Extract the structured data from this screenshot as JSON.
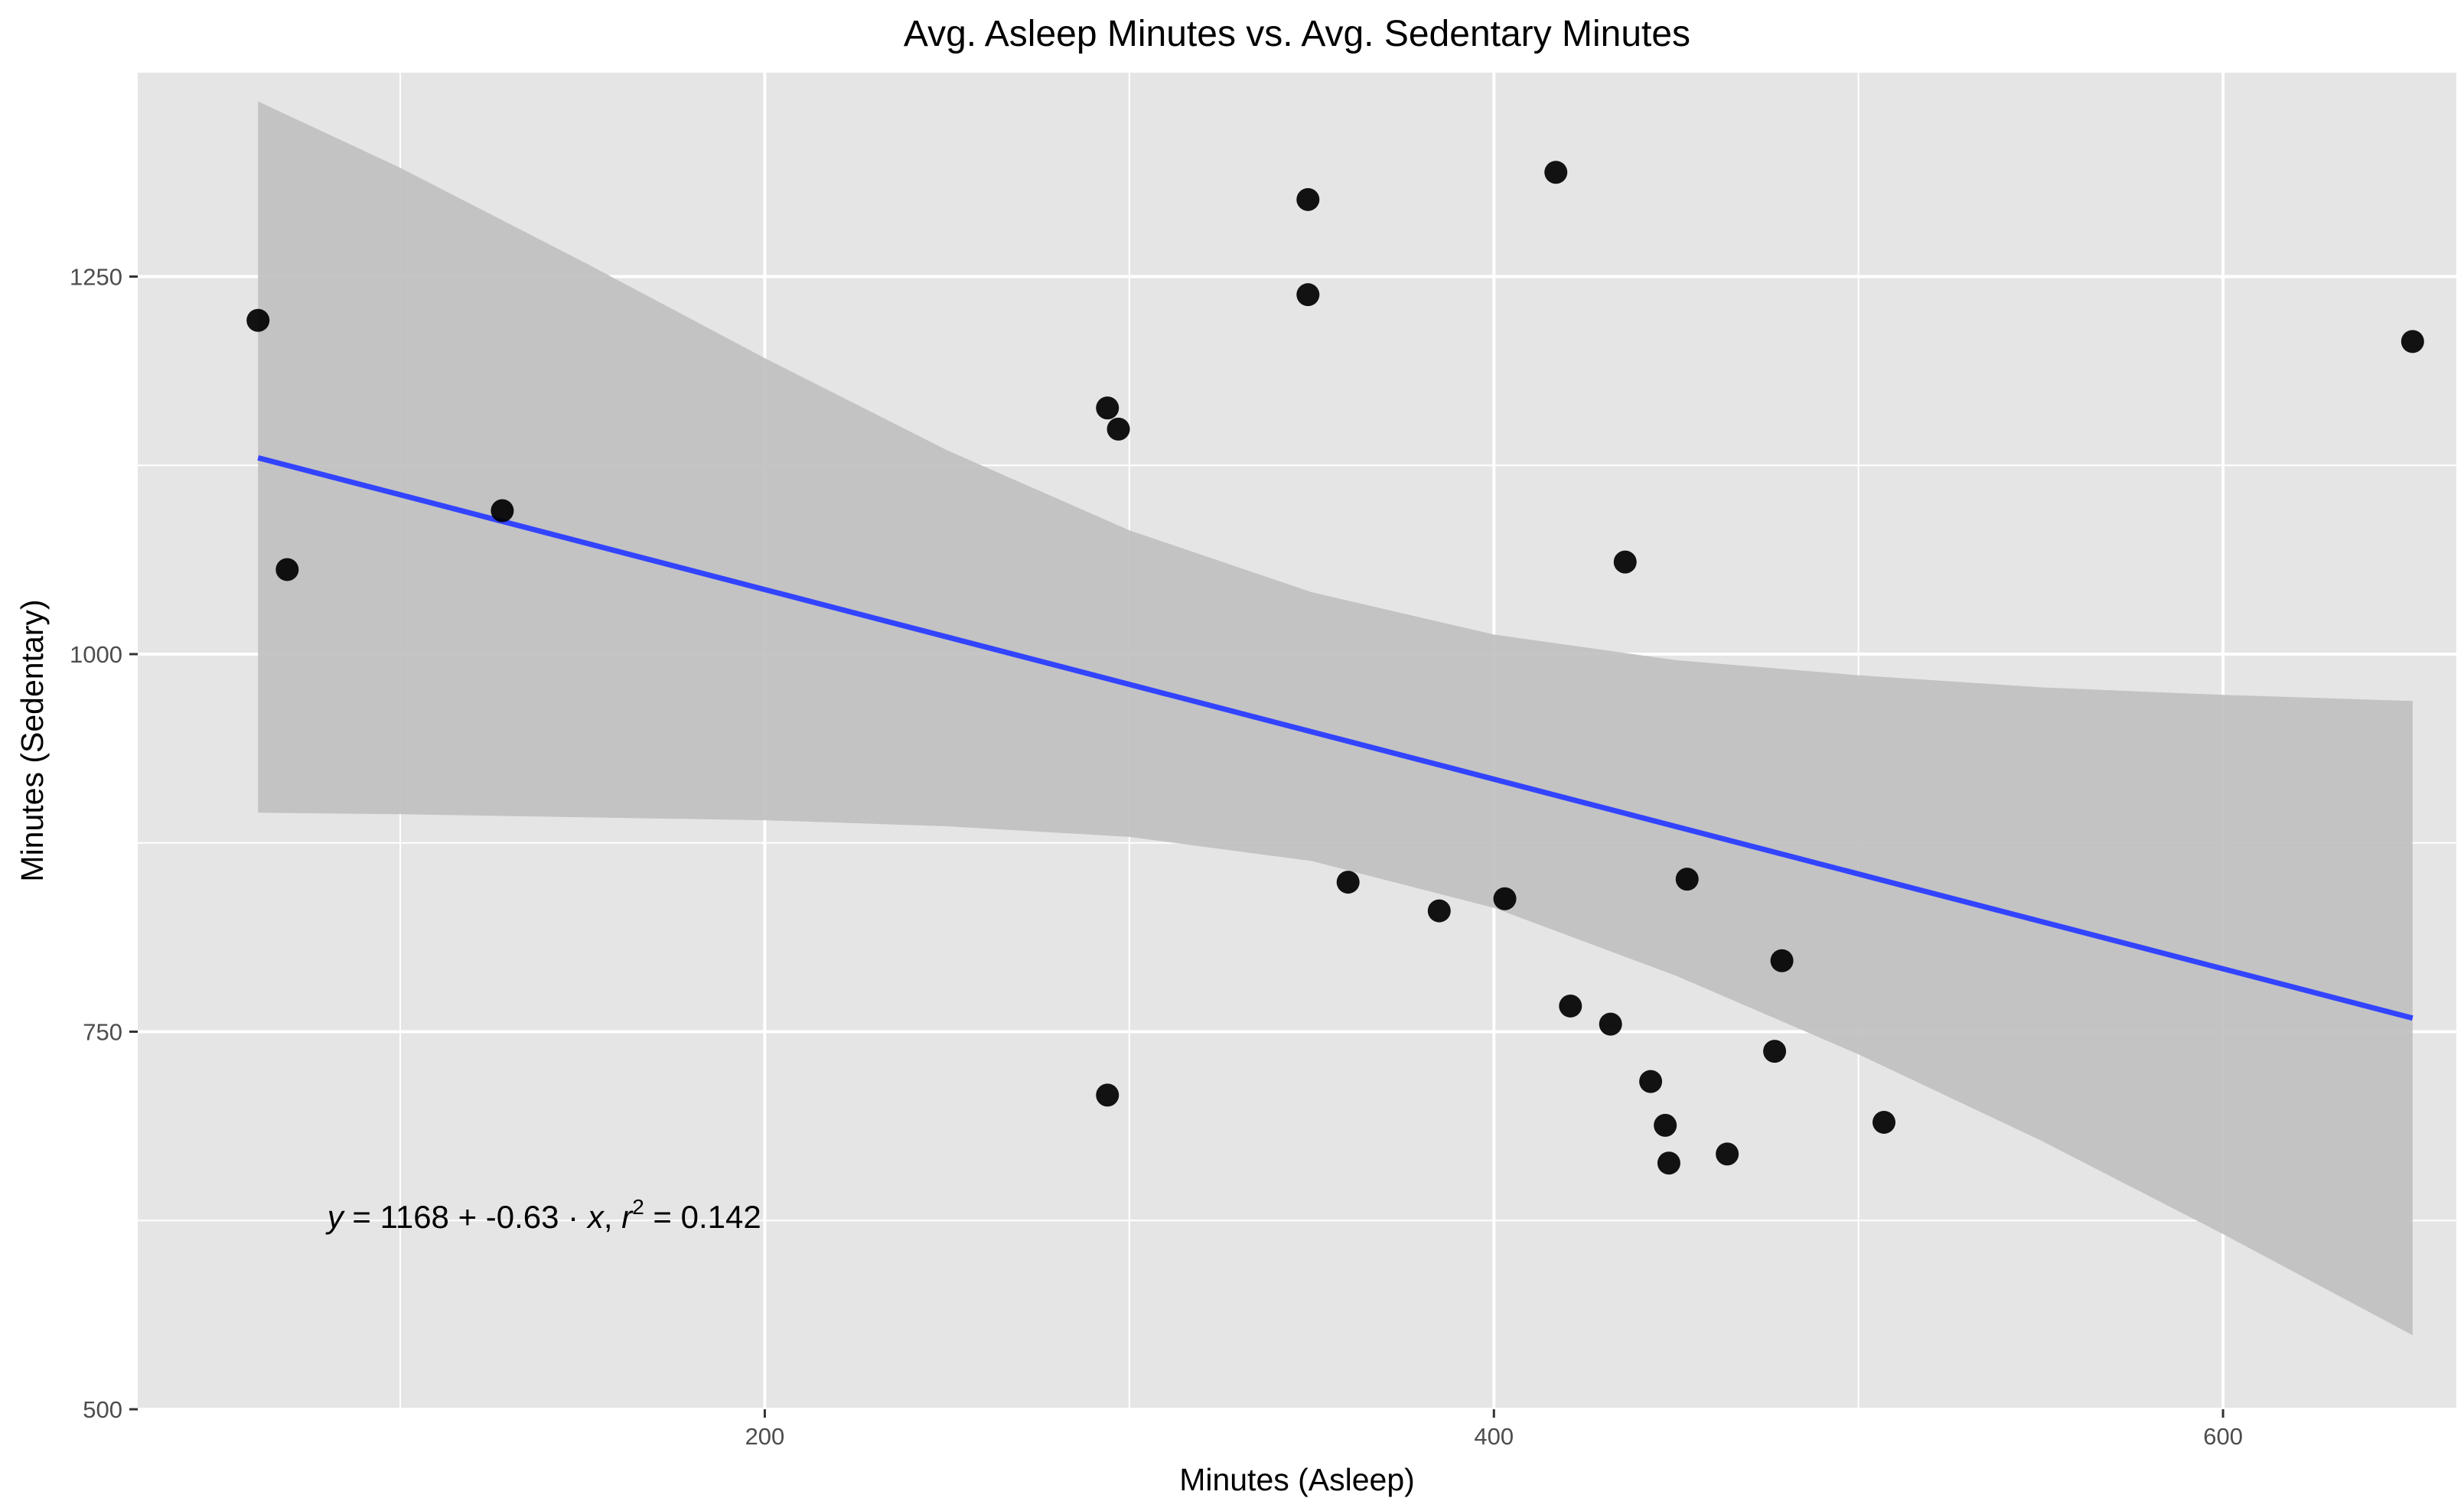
{
  "chart_data": {
    "type": "scatter",
    "title": "Avg. Asleep Minutes vs. Avg. Sedentary Minutes",
    "xlabel": "Minutes (Asleep)",
    "ylabel": "Minutes (Sedentary)",
    "xlim": [
      28,
      664
    ],
    "ylim": [
      500,
      1385
    ],
    "x_ticks": [
      200,
      400,
      600
    ],
    "y_ticks": [
      500,
      750,
      1000,
      1250
    ],
    "x_minor": [
      100,
      300,
      500
    ],
    "y_minor": [
      625,
      875,
      1125
    ],
    "grid": true,
    "legend": "none",
    "colors": {
      "panel": "#e5e5e5",
      "grid": "#ffffff",
      "points": "#000000",
      "fit_line": "#3344ff",
      "confidence_band": "#bfbfbf"
    },
    "points": [
      {
        "x": 61,
        "y": 1221
      },
      {
        "x": 69,
        "y": 1056
      },
      {
        "x": 128,
        "y": 1095
      },
      {
        "x": 294,
        "y": 1163
      },
      {
        "x": 297,
        "y": 1149
      },
      {
        "x": 294,
        "y": 708
      },
      {
        "x": 349,
        "y": 1301
      },
      {
        "x": 349,
        "y": 1238
      },
      {
        "x": 360,
        "y": 849
      },
      {
        "x": 385,
        "y": 830
      },
      {
        "x": 403,
        "y": 838
      },
      {
        "x": 417,
        "y": 1319
      },
      {
        "x": 421,
        "y": 767
      },
      {
        "x": 432,
        "y": 755
      },
      {
        "x": 436,
        "y": 1061
      },
      {
        "x": 443,
        "y": 717
      },
      {
        "x": 447,
        "y": 688
      },
      {
        "x": 448,
        "y": 663
      },
      {
        "x": 453,
        "y": 851
      },
      {
        "x": 464,
        "y": 669
      },
      {
        "x": 477,
        "y": 737
      },
      {
        "x": 479,
        "y": 797
      },
      {
        "x": 507,
        "y": 690
      },
      {
        "x": 652,
        "y": 1207
      }
    ],
    "fit_line": {
      "x": [
        61,
        652
      ],
      "y": [
        1130,
        759
      ]
    },
    "confidence_band": {
      "x": [
        61,
        100,
        150,
        200,
        250,
        300,
        350,
        400,
        450,
        500,
        550,
        600,
        652
      ],
      "upper": [
        1366,
        1322,
        1260,
        1196,
        1135,
        1082,
        1041,
        1013,
        996,
        986,
        978,
        973,
        969
      ],
      "lower": [
        895,
        894,
        892,
        890,
        886,
        879,
        863,
        832,
        787,
        735,
        678,
        616,
        549
      ]
    },
    "annotation": {
      "y_var": "y",
      "eq_rest": " = 1168 + -0.63 · ",
      "x_var": "x",
      "sep": ",  ",
      "r_var": "r",
      "r_exp": "2",
      "r_val": " = 0.142",
      "at_x": 80,
      "at_y": 620
    }
  }
}
